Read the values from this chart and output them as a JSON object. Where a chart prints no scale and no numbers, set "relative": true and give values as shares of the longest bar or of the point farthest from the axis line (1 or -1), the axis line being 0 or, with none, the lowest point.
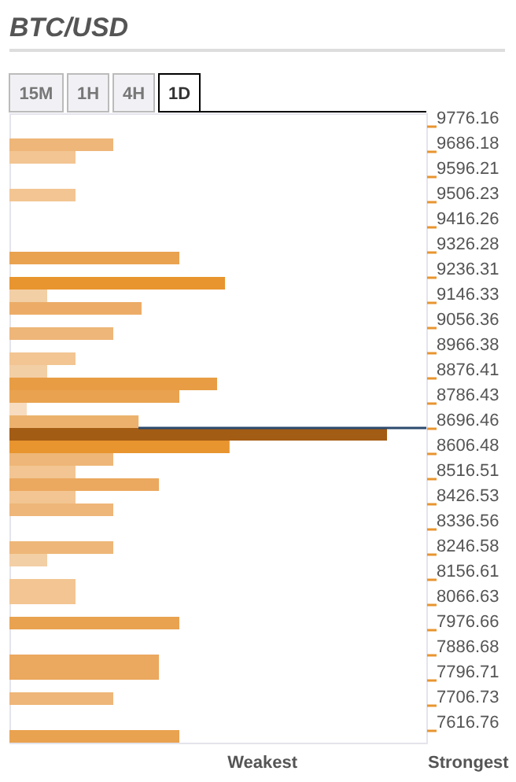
{
  "chart_data": {
    "type": "bar",
    "orientation": "horizontal",
    "relative": true,
    "title": "BTC/USD",
    "x": [
      9708.68,
      9663.69,
      9528.72,
      9303.77,
      9213.79,
      9168.8,
      9123.81,
      9033.83,
      8943.85,
      8898.86,
      8853.87,
      8808.88,
      8763.89,
      8718.9,
      8673.91,
      8628.92,
      8583.93,
      8538.94,
      8493.95,
      8448.96,
      8403.97,
      8269.0,
      8224.01,
      8134.03,
      8089.04,
      7999.06,
      7864.09,
      7819.1,
      7729.12,
      7594.15
    ],
    "values": [
      0.275,
      0.175,
      0.175,
      0.45,
      0.571,
      0.1,
      0.35,
      0.275,
      0.175,
      0.1,
      0.55,
      0.45,
      0.046,
      0.342,
      1,
      0.583,
      0.275,
      0.175,
      0.396,
      0.175,
      0.275,
      0.275,
      0.1,
      0.175,
      0.175,
      0.45,
      0.396,
      0.396,
      0.275,
      0.45
    ],
    "colors": [
      "#eeb678",
      "#f2c592",
      "#f2c592",
      "#e9a250",
      "#e8952f",
      "#f3cfa5",
      "#ecac67",
      "#eeb678",
      "#f2c592",
      "#f3cfa5",
      "#e89d45",
      "#e9a250",
      "#f7dcc0",
      "#ecb26d",
      "#a35c14",
      "#e8952f",
      "#eeb678",
      "#f2c592",
      "#eba85f",
      "#f2c592",
      "#eeb678",
      "#eeb678",
      "#f3cfa5",
      "#f2c592",
      "#f2c592",
      "#e9a250",
      "#eba85f",
      "#eba85f",
      "#eeb678",
      "#e9a250"
    ],
    "ylim": [
      7571.77,
      9821.15
    ],
    "yticks": [
      9776.16,
      9686.18,
      9596.21,
      9506.23,
      9416.26,
      9326.28,
      9236.31,
      9146.33,
      9056.36,
      8966.38,
      8876.41,
      8786.43,
      8696.46,
      8606.48,
      8516.51,
      8426.53,
      8336.56,
      8246.58,
      8156.61,
      8066.63,
      7976.66,
      7886.68,
      7796.71,
      7706.73,
      7616.76
    ],
    "ref_lines": [
      {
        "axis": "y",
        "value": 8696.46,
        "color": "#2c4a6e"
      }
    ],
    "annotations": [
      "15M",
      "1H",
      "4H",
      "1D",
      "Weakest",
      "Strongest"
    ]
  }
}
